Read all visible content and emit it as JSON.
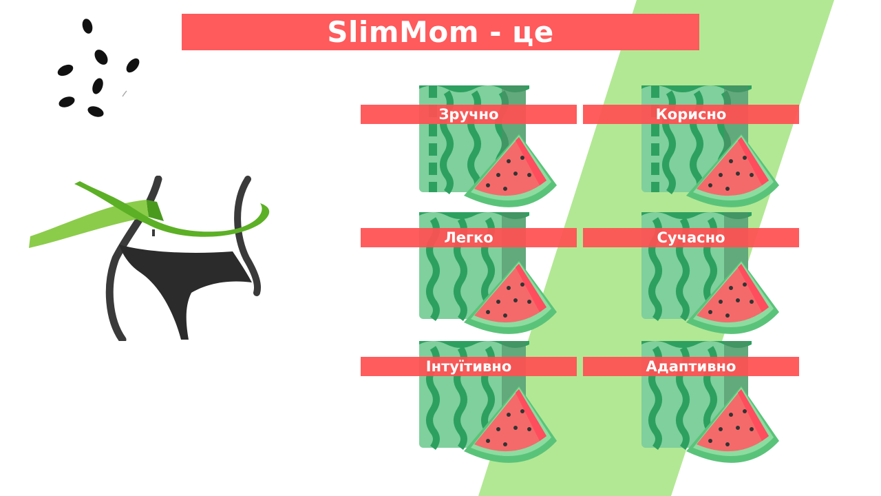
{
  "title": "SlimMom - це",
  "colors": {
    "accent_red": "#ff5a5c",
    "stripe_green": "#b2e894",
    "ribbon_green": "#5cb025"
  },
  "features": [
    {
      "label": "Зручно",
      "icon": "watermelon-icon"
    },
    {
      "label": "Корисно",
      "icon": "watermelon-icon"
    },
    {
      "label": "Легко",
      "icon": "watermelon-icon"
    },
    {
      "label": "Сучасно",
      "icon": "watermelon-icon"
    },
    {
      "label": "Інтуїтивно",
      "icon": "watermelon-icon"
    },
    {
      "label": "Адаптивно",
      "icon": "watermelon-icon"
    }
  ]
}
